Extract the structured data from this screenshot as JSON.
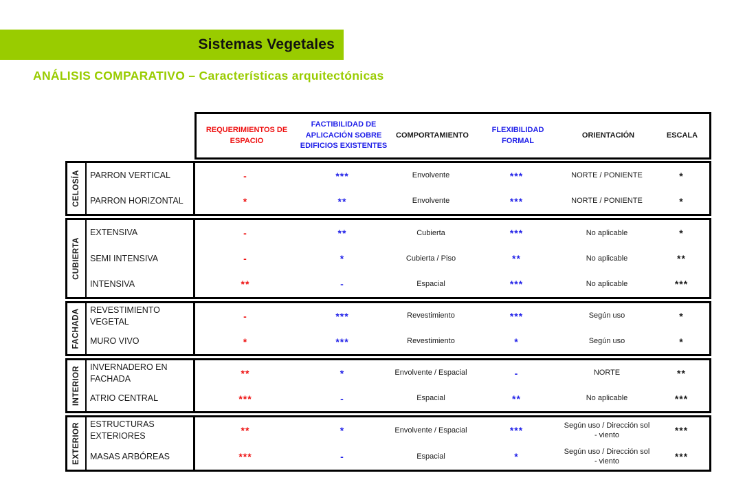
{
  "banner": {
    "title": "Sistemas Vegetales"
  },
  "page_title": "ANÁLISIS COMPARATIVO – Características arquitectónicas",
  "colors": {
    "accent_green": "#99cc00",
    "value_red": "#ee1111",
    "value_blue": "#1f1fe8",
    "text_black": "#1a1a1a"
  },
  "table": {
    "columns": [
      {
        "label": "REQUERIMIENTOS DE ESPACIO",
        "color": "#ee1111",
        "value_color": "#ee1111"
      },
      {
        "label": "FACTIBILIDAD DE APLICACIÓN SOBRE EDIFICIOS EXISTENTES",
        "color": "#1f1fe8",
        "value_color": "#1f1fe8"
      },
      {
        "label": "COMPORTAMIENTO",
        "color": "#1a1a1a",
        "value_color": "#1a1a1a"
      },
      {
        "label": "FLEXIBILIDAD FORMAL",
        "color": "#1f1fe8",
        "value_color": "#1f1fe8"
      },
      {
        "label": "ORIENTACIÓN",
        "color": "#1a1a1a",
        "value_color": "#1a1a1a"
      },
      {
        "label": "ESCALA",
        "color": "#1a1a1a",
        "value_color": "#1a1a1a"
      }
    ],
    "groups": [
      {
        "label": "CELOSÍA",
        "rows": [
          {
            "name": "PARRON VERTICAL",
            "cells": [
              "-",
              "***",
              "Envolvente",
              "***",
              "NORTE / PONIENTE",
              "*"
            ]
          },
          {
            "name": "PARRON HORIZONTAL",
            "cells": [
              "*",
              "**",
              "Envolvente",
              "***",
              "NORTE / PONIENTE",
              "*"
            ]
          }
        ]
      },
      {
        "label": "CUBIERTA",
        "rows": [
          {
            "name": "EXTENSIVA",
            "cells": [
              "-",
              "**",
              "Cubierta",
              "***",
              "No aplicable",
              "*"
            ]
          },
          {
            "name": "SEMI INTENSIVA",
            "cells": [
              "-",
              "*",
              "Cubierta / Piso",
              "**",
              "No aplicable",
              "**"
            ]
          },
          {
            "name": "INTENSIVA",
            "cells": [
              "**",
              "-",
              "Espacial",
              "***",
              "No aplicable",
              "***"
            ]
          }
        ]
      },
      {
        "label": "FACHADA",
        "rows": [
          {
            "name": "REVESTIMIENTO VEGETAL",
            "cells": [
              "-",
              "***",
              "Revestimiento",
              "***",
              "Según uso",
              "*"
            ]
          },
          {
            "name": "MURO VIVO",
            "cells": [
              "*",
              "***",
              "Revestimiento",
              "*",
              "Según uso",
              "*"
            ]
          }
        ]
      },
      {
        "label": "INTERIOR",
        "rows": [
          {
            "name": "INVERNADERO EN FACHADA",
            "cells": [
              "**",
              "*",
              "Envolvente / Espacial",
              "-",
              "NORTE",
              "**"
            ]
          },
          {
            "name": "ATRIO CENTRAL",
            "cells": [
              "***",
              "-",
              "Espacial",
              "**",
              "No aplicable",
              "***"
            ]
          }
        ]
      },
      {
        "label": "EXTERIOR",
        "rows": [
          {
            "name": "ESTRUCTURAS EXTERIORES",
            "cells": [
              "**",
              "*",
              "Envolvente / Espacial",
              "***",
              "Según uso / Dirección sol - viento",
              "***"
            ]
          },
          {
            "name": "MASAS ARBÓREAS",
            "cells": [
              "***",
              "-",
              "Espacial",
              "*",
              "Según uso / Dirección sol - viento",
              "***"
            ]
          }
        ]
      }
    ]
  }
}
